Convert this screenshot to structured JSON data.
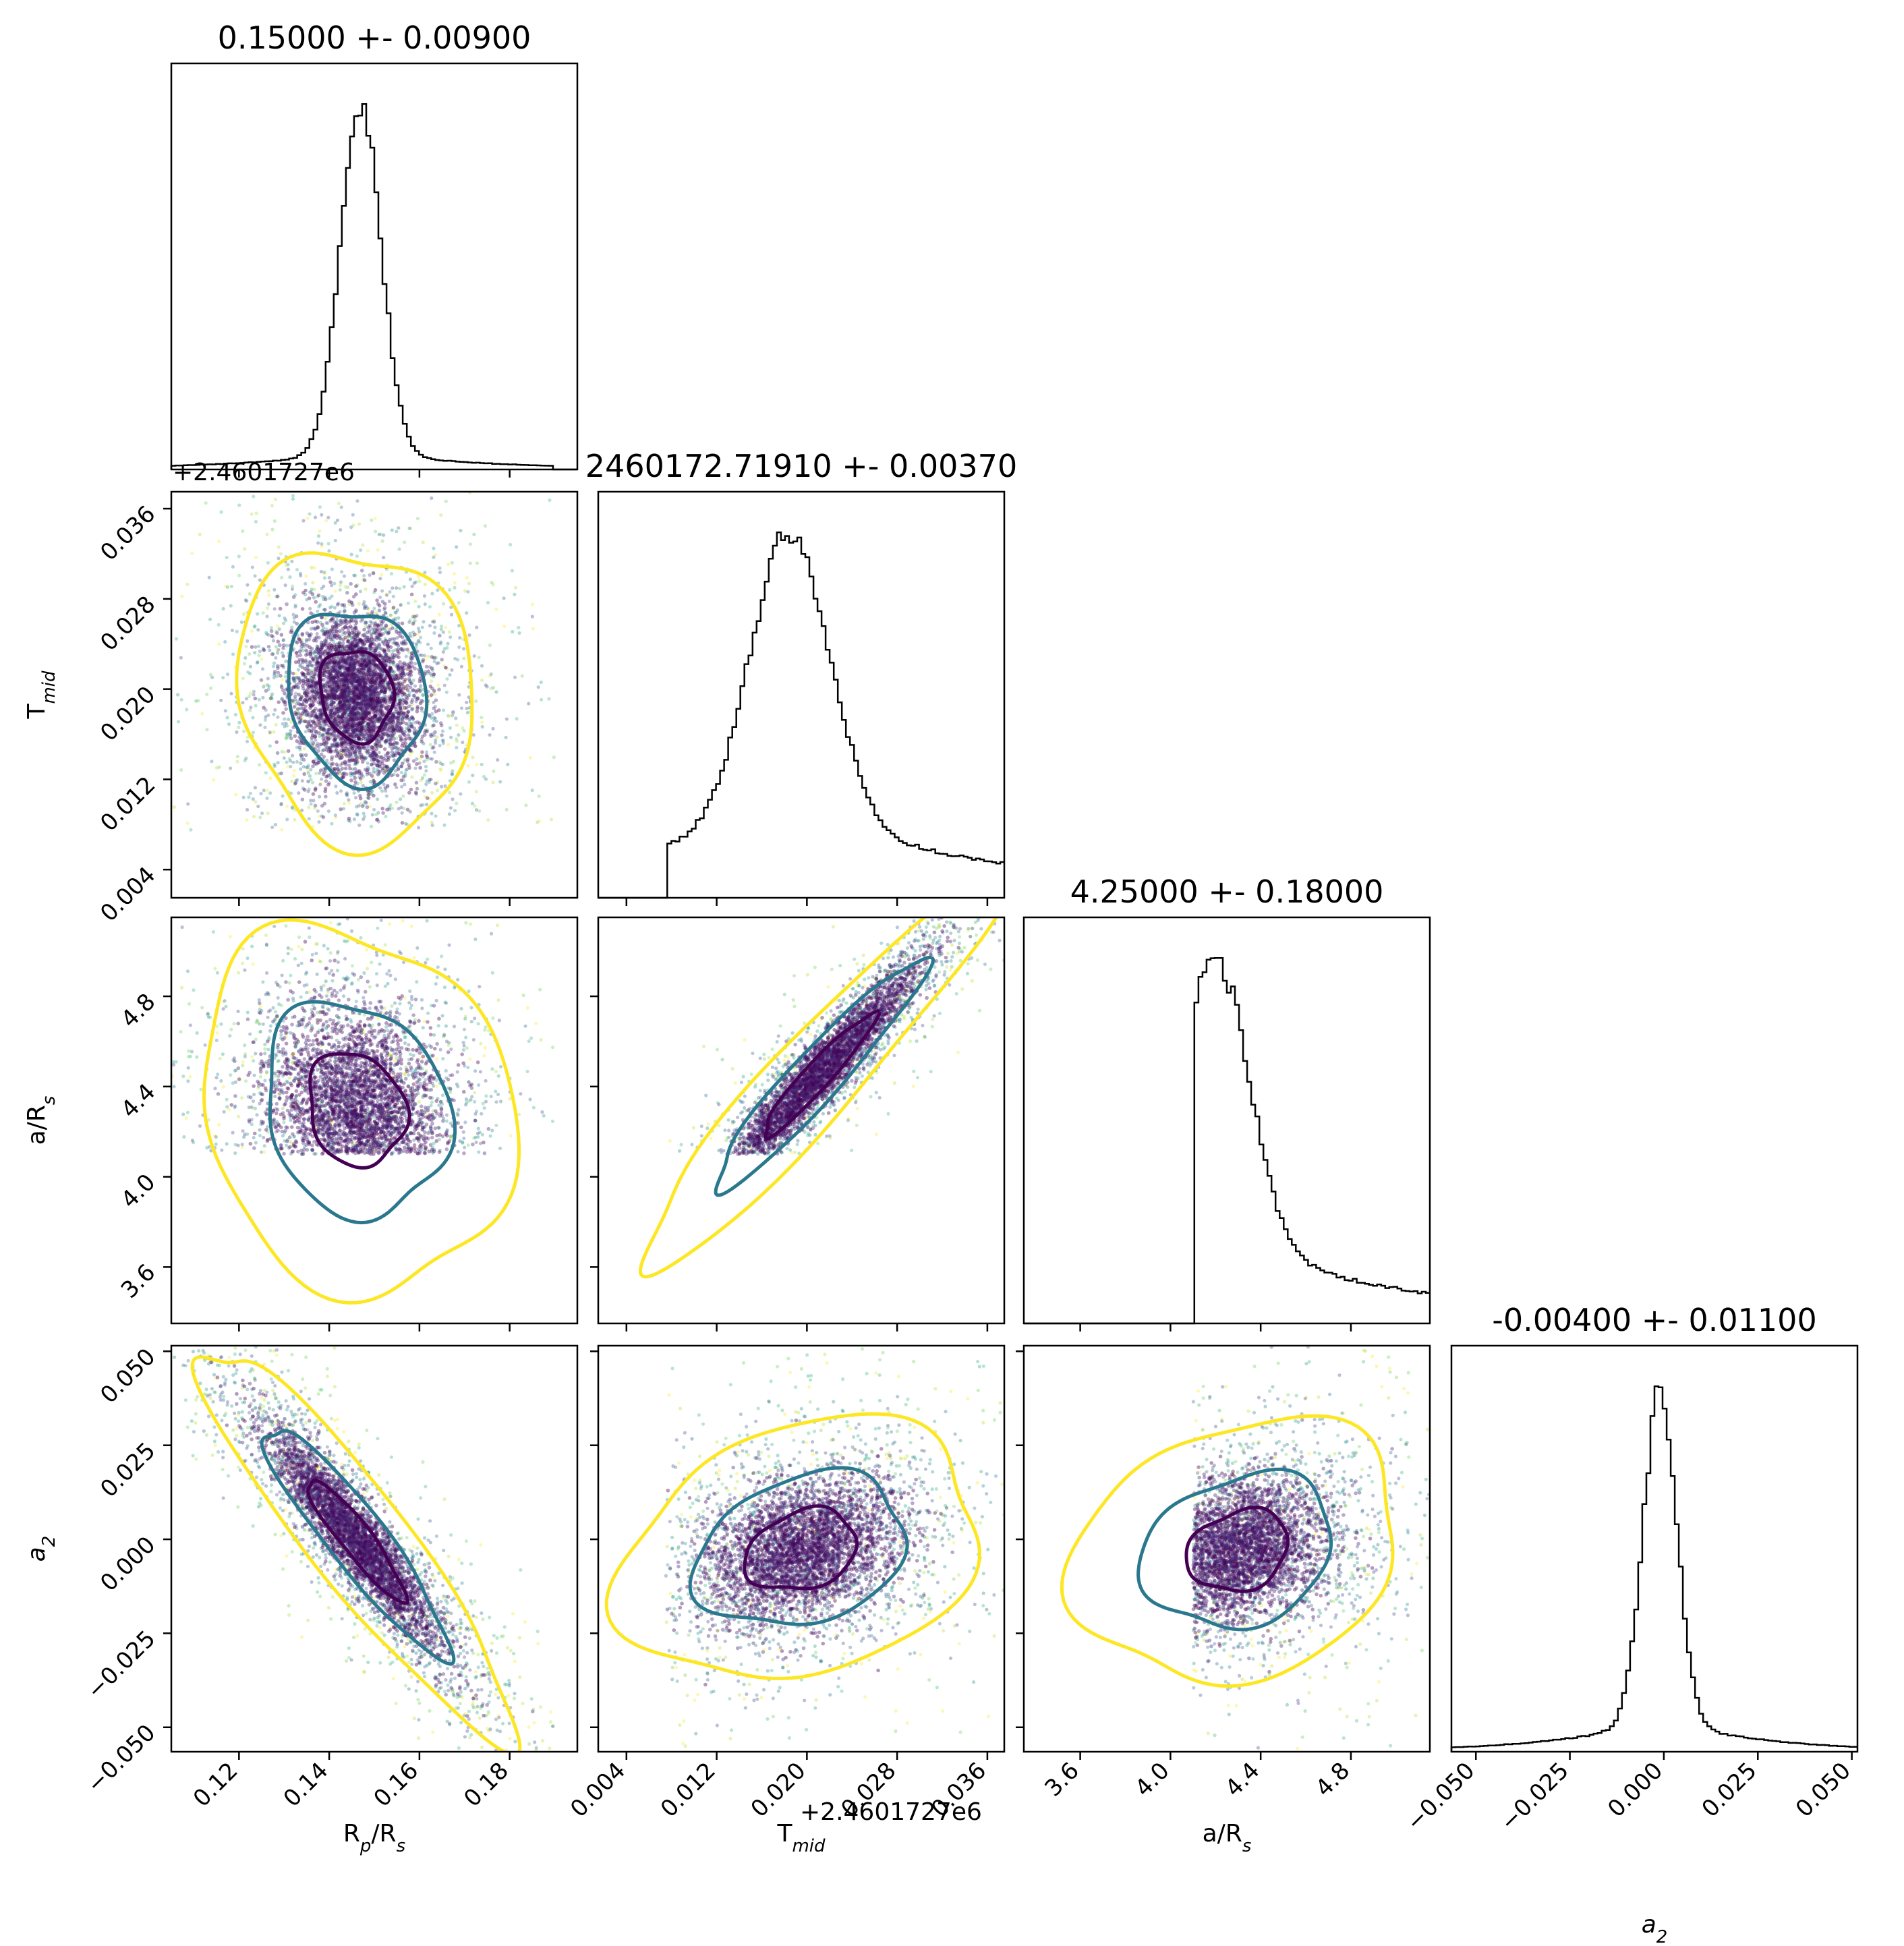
{
  "chart_data": {
    "type": "corner",
    "parameters": [
      {
        "key": "rprs",
        "label": "R",
        "label_sub": "p",
        "label_mid": "/R",
        "label_sub2": "s",
        "title": "0.15000 +- 0.00900",
        "range": [
          0.105,
          0.195
        ],
        "ticks": [
          0.12,
          0.14,
          0.16,
          0.18
        ],
        "tick_labels": [
          "0.12",
          "0.14",
          "0.16",
          "0.18"
        ]
      },
      {
        "key": "tmid",
        "label": "T",
        "label_sub": "mid",
        "title": "2460172.71910 +- 0.00370",
        "offset": "+2.4601727e6",
        "range": [
          0.0015,
          0.0375
        ],
        "ticks": [
          0.004,
          0.012,
          0.02,
          0.028,
          0.036
        ],
        "tick_labels": [
          "0.004",
          "0.012",
          "0.020",
          "0.028",
          "0.036"
        ]
      },
      {
        "key": "ars",
        "label": "a/R",
        "label_sub": "s",
        "title": "4.25000 +- 0.18000",
        "range": [
          3.35,
          5.15
        ],
        "ticks": [
          3.6,
          4.0,
          4.4,
          4.8
        ],
        "tick_labels": [
          "3.6",
          "4.0",
          "4.4",
          "4.8"
        ]
      },
      {
        "key": "a2",
        "label": "a",
        "label_sub": "2",
        "title": "-0.00400 +- 0.01100",
        "range": [
          -0.0565,
          0.0515
        ],
        "ticks": [
          -0.05,
          -0.025,
          0.0,
          0.025,
          0.05
        ],
        "tick_labels": [
          "−0.050",
          "−0.025",
          "0.000",
          "0.025",
          "0.050"
        ]
      }
    ],
    "marginals": [
      {
        "param": "rprs",
        "mode": 0.147,
        "width": 0.0045,
        "tail": 0.05,
        "min": 0.105,
        "max": 0.19,
        "peak_heights": [
          0.02,
          0.03,
          0.05,
          0.08,
          0.12,
          0.2,
          0.35,
          0.55,
          0.8,
          0.95,
          1.0,
          0.92,
          0.7,
          0.45,
          0.3,
          0.2
        ]
      },
      {
        "param": "tmid",
        "mode": 0.0185,
        "width": 0.0035,
        "tail": 0.3,
        "min": 0.0075,
        "max": 0.0375
      },
      {
        "param": "ars",
        "mode": 4.2,
        "width": 0.15,
        "tail": 0.3,
        "min": 4.1,
        "max": 5.15
      },
      {
        "param": "a2",
        "mode": -0.001,
        "width": 0.0045,
        "tail": 0.1,
        "min": -0.0565,
        "max": 0.0515
      }
    ],
    "pairs": [
      {
        "x": "rprs",
        "y": "tmid",
        "center": [
          0.146,
          0.0195
        ],
        "sd": [
          0.009,
          0.0045
        ],
        "rho": -0.1
      },
      {
        "x": "rprs",
        "y": "ars",
        "center": [
          0.146,
          4.3
        ],
        "sd": [
          0.012,
          0.28
        ],
        "rho": -0.15
      },
      {
        "x": "tmid",
        "y": "ars",
        "center": [
          0.021,
          4.45
        ],
        "sd": [
          0.0055,
          0.3
        ],
        "rho": 0.95
      },
      {
        "x": "rprs",
        "y": "a2",
        "center": [
          0.146,
          0.0
        ],
        "sd": [
          0.012,
          0.018
        ],
        "rho": -0.92
      },
      {
        "x": "tmid",
        "y": "a2",
        "center": [
          0.0195,
          -0.003
        ],
        "sd": [
          0.0055,
          0.012
        ],
        "rho": 0.25
      },
      {
        "x": "ars",
        "y": "a2",
        "center": [
          4.3,
          -0.003
        ],
        "sd": [
          0.25,
          0.012
        ],
        "rho": 0.2
      }
    ],
    "colormap": "viridis",
    "contour_colors": [
      "#440154",
      "#2a788e",
      "#fde725"
    ],
    "histogram_color": "#000000",
    "grid": false,
    "legend": "none"
  }
}
